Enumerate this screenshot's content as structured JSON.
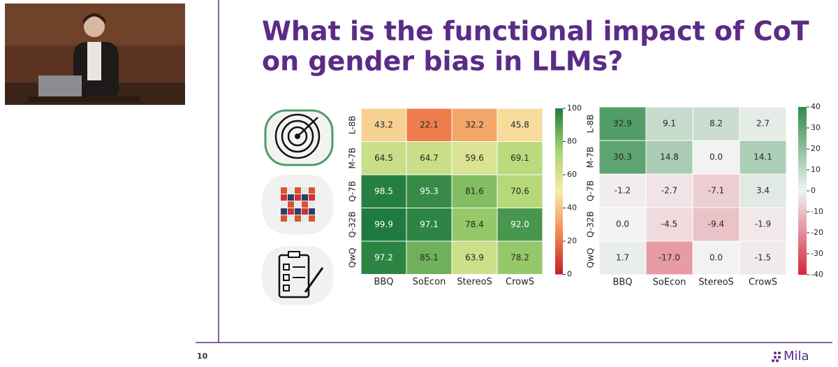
{
  "slide": {
    "title": [
      "What is the functional impact of CoT",
      "on gender bias in LLMs?"
    ],
    "number": "10",
    "logo": "Mila"
  },
  "chart_data": [
    {
      "type": "heatmap",
      "rows": [
        "L-8B",
        "M-7B",
        "Q-7B",
        "Q-32B",
        "QwQ"
      ],
      "columns": [
        "BBQ",
        "SoEcon",
        "StereoS",
        "CrowS"
      ],
      "values": [
        [
          43.2,
          22.1,
          32.2,
          45.8
        ],
        [
          64.5,
          64.7,
          59.6,
          69.1
        ],
        [
          98.5,
          95.3,
          81.6,
          70.6
        ],
        [
          99.9,
          97.1,
          78.4,
          92.0
        ],
        [
          97.2,
          85.1,
          63.9,
          78.2
        ]
      ],
      "value_labels": [
        [
          "43.2",
          "22.1",
          "32.2",
          "45.8"
        ],
        [
          "64.5",
          "64.7",
          "59.6",
          "69.1"
        ],
        [
          "98.5",
          "95.3",
          "81.6",
          "70.6"
        ],
        [
          "99.9",
          "97.1",
          "78.4",
          "92.0"
        ],
        [
          "97.2",
          "85.1",
          "63.9",
          "78.2"
        ]
      ],
      "clim": [
        0,
        100
      ],
      "cticks": [
        0,
        20,
        40,
        60,
        80,
        100
      ],
      "colors": [
        "#c41e2a",
        "#f28a4f",
        "#f8ecaa",
        "#a7d46f",
        "#1d7a3e"
      ]
    },
    {
      "type": "heatmap",
      "rows": [
        "L-8B",
        "M-7B",
        "Q-7B",
        "Q-32B",
        "QwQ"
      ],
      "columns": [
        "BBQ",
        "SoEcon",
        "StereoS",
        "CrowS"
      ],
      "values": [
        [
          32.9,
          9.1,
          8.2,
          2.7
        ],
        [
          30.3,
          14.8,
          0.0,
          14.1
        ],
        [
          -1.2,
          -2.7,
          -7.1,
          3.4
        ],
        [
          0.0,
          -4.5,
          -9.4,
          -1.9
        ],
        [
          1.7,
          -17.0,
          0.0,
          -1.5
        ]
      ],
      "value_labels": [
        [
          "32.9",
          "9.1",
          "8.2",
          "2.7"
        ],
        [
          "30.3",
          "14.8",
          "0.0",
          "14.1"
        ],
        [
          "-1.2",
          "-2.7",
          "-7.1",
          "3.4"
        ],
        [
          "0.0",
          "-4.5",
          "-9.4",
          "-1.9"
        ],
        [
          "1.7",
          "-17.0",
          "0.0",
          "-1.5"
        ]
      ],
      "clim": [
        -40,
        40
      ],
      "cticks": [
        -40,
        -30,
        -20,
        -10,
        0,
        10,
        20,
        30,
        40
      ],
      "colors": [
        "#d6263c",
        "#f2f2f2",
        "#2f8b4a"
      ]
    }
  ]
}
